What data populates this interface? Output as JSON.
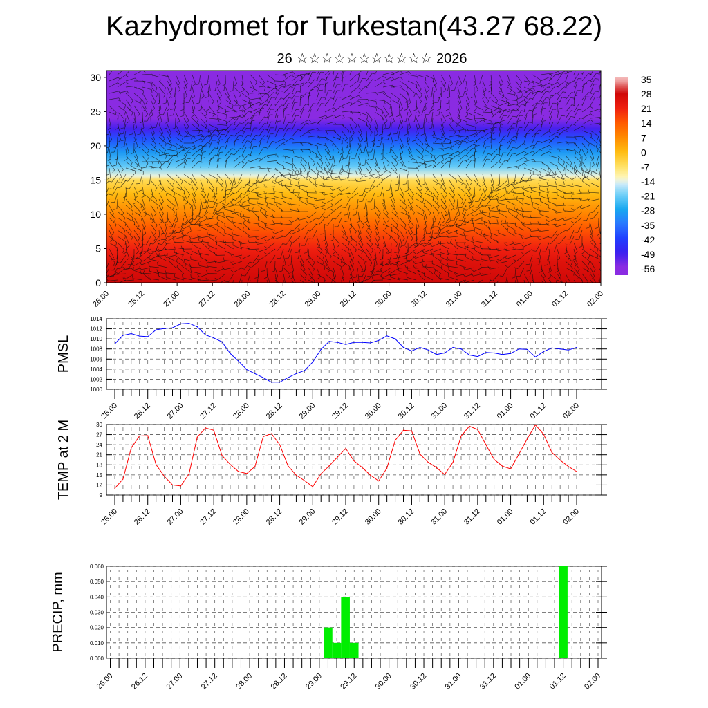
{
  "header": {
    "title": "Kazhydromet for Turkestan(43.27 68.22)",
    "subtitle": "26 ☆☆☆☆☆☆☆☆☆☆☆ 2026"
  },
  "time_labels": [
    "26.00",
    "26.12",
    "27.00",
    "27.12",
    "28.00",
    "28.12",
    "29.00",
    "29.12",
    "30.00",
    "30.12",
    "31.00",
    "31.12",
    "01.00",
    "01.12",
    "02.00"
  ],
  "chart_data": [
    {
      "type": "heatmap",
      "title": "Temperature cross-section with wind barbs",
      "ylabel": "",
      "ylim": [
        0,
        31
      ],
      "yticks": [
        "0",
        "5",
        "10",
        "15",
        "20",
        "25",
        "30"
      ],
      "colorbar_labels": [
        "35",
        "28",
        "21",
        "14",
        "7",
        "0",
        "-7",
        "-14",
        "-21",
        "-28",
        "-35",
        "-42",
        "-49",
        "-56"
      ],
      "profile_heights": [
        0,
        3,
        5,
        8,
        10,
        13,
        15,
        15.6,
        17,
        19,
        21,
        22.5,
        24,
        31
      ],
      "profile_temps": [
        28,
        25,
        21,
        14,
        8,
        0,
        -6,
        -14,
        -22,
        -30,
        -40,
        -50,
        -56,
        -56
      ]
    },
    {
      "type": "line",
      "ylabel": "PMSL",
      "ylim": [
        1000,
        1014
      ],
      "yticks": [
        "1000",
        "1002",
        "1004",
        "1006",
        "1008",
        "1010",
        "1012",
        "1014"
      ],
      "color": "#0000ff",
      "values": [
        1009.0,
        1010.7,
        1011.05,
        1010.55,
        1010.45,
        1011.8,
        1012.06,
        1012.2,
        1012.98,
        1013.1,
        1012.4,
        1010.8,
        1010.2,
        1009.4,
        1007.1,
        1005.6,
        1003.9,
        1003.1,
        1002.3,
        1001.4,
        1001.4,
        1002.3,
        1003.1,
        1003.7,
        1005.4,
        1007.9,
        1009.5,
        1009.3,
        1008.9,
        1009.3,
        1009.3,
        1009.2,
        1009.7,
        1010.6,
        1010.0,
        1008.3,
        1007.6,
        1008.3,
        1007.8,
        1006.9,
        1007.2,
        1008.3,
        1008.0,
        1006.8,
        1006.5,
        1007.3,
        1007.2,
        1006.9,
        1007.1,
        1008.0,
        1007.9,
        1006.4,
        1007.5,
        1008.2,
        1008.0,
        1007.8,
        1008.3
      ]
    },
    {
      "type": "line",
      "ylabel": "TEMP at 2 M",
      "ylim": [
        9,
        30
      ],
      "yticks": [
        "9",
        "12",
        "15",
        "18",
        "21",
        "24",
        "27",
        "30"
      ],
      "color": "#ff0000",
      "values": [
        11.0,
        13.75,
        23.1,
        26.6,
        26.7,
        18.1,
        14.6,
        12.0,
        11.7,
        15.3,
        26.25,
        29.0,
        28.3,
        20.8,
        18.1,
        16.0,
        15.4,
        17.5,
        26.4,
        27.3,
        24.0,
        17.7,
        14.9,
        13.3,
        11.5,
        15.3,
        17.7,
        20.3,
        22.9,
        19.2,
        17.2,
        14.9,
        13.2,
        17.0,
        25.3,
        28.3,
        28.1,
        21.2,
        18.75,
        17.2,
        15.1,
        18.75,
        26.6,
        29.5,
        28.5,
        24.0,
        19.6,
        17.6,
        16.8,
        21.2,
        25.7,
        29.9,
        27.1,
        21.7,
        19.4,
        17.5,
        16.0
      ]
    },
    {
      "type": "bar",
      "ylabel": "PRECIP, mm",
      "ylim": [
        0,
        0.06
      ],
      "yticks": [
        "0.000",
        "0.010",
        "0.020",
        "0.030",
        "0.040",
        "0.050",
        "0.060"
      ],
      "color": "#00ee00",
      "bars": [
        {
          "step": 25,
          "value": 0.02
        },
        {
          "step": 26,
          "value": 0.01
        },
        {
          "step": 27,
          "value": 0.04
        },
        {
          "step": 28,
          "value": 0.01
        },
        {
          "step": 52,
          "value": 0.06
        }
      ]
    }
  ]
}
